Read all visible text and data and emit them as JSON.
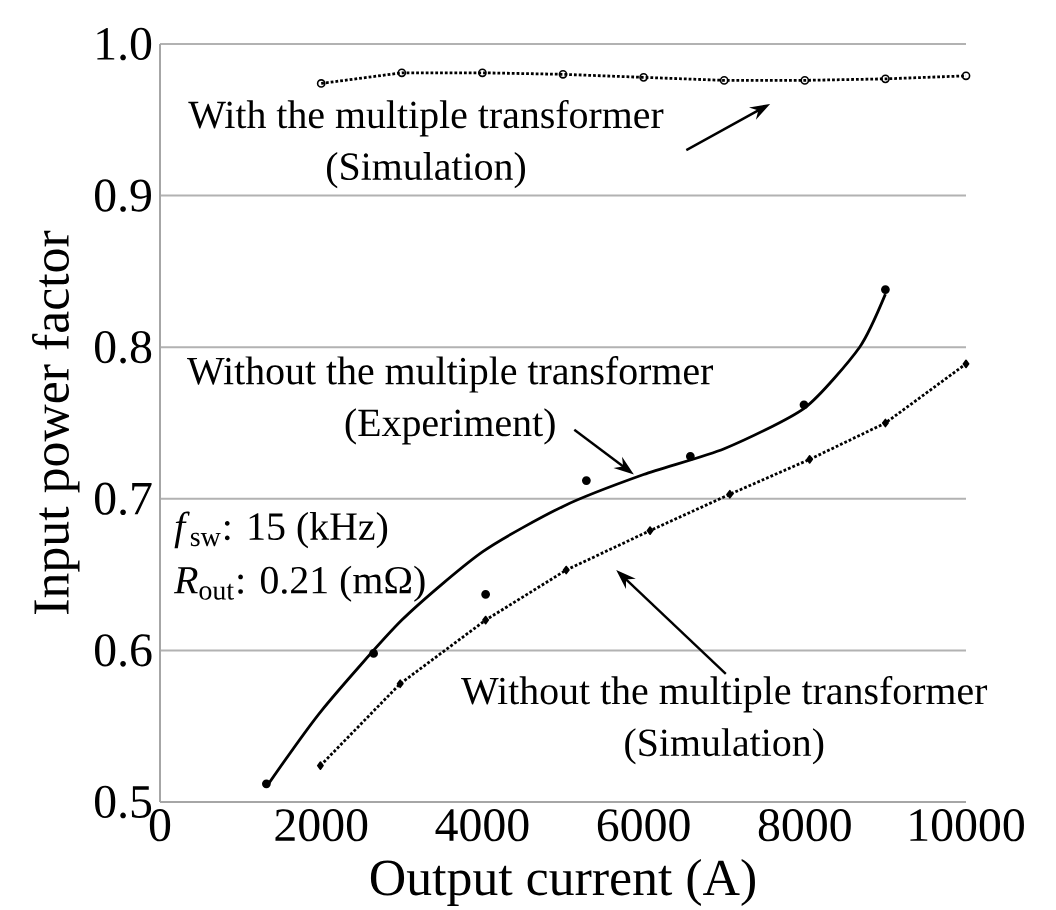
{
  "chart_data": {
    "type": "line",
    "xlabel": "Output current (A)",
    "ylabel": "Input power factor",
    "xlim": [
      0,
      10000
    ],
    "xticks": [
      0,
      2000,
      4000,
      6000,
      8000,
      10000
    ],
    "ylim": [
      0.5,
      1.0
    ],
    "yticks": [
      {
        "value": 0.5,
        "label": "0.5"
      },
      {
        "value": 0.6,
        "label": "0.6"
      },
      {
        "value": 0.7,
        "label": "0.7"
      },
      {
        "value": 0.8,
        "label": "0.8"
      },
      {
        "value": 0.9,
        "label": "0.9"
      },
      {
        "value": 1.0,
        "label": "1.0"
      }
    ],
    "grid": "y",
    "series": [
      {
        "line_style": "dotted",
        "marker": "circle",
        "color": "#000000",
        "x": [
          2000,
          3000,
          4000,
          5000,
          6000,
          7000,
          8000,
          9000,
          10000
        ],
        "values": [
          0.974,
          0.981,
          0.981,
          0.98,
          0.978,
          0.976,
          0.976,
          0.977,
          0.979
        ]
      },
      {
        "type": "scatter",
        "marker": "circle",
        "color": "#000000",
        "x": [
          1320,
          2650,
          4040,
          5290,
          6580,
          7990,
          9000
        ],
        "values": [
          0.512,
          0.598,
          0.637,
          0.712,
          0.728,
          0.762,
          0.838
        ]
      },
      {
        "line_style": "solid",
        "marker": "none",
        "color": "#000000",
        "x": [
          1320,
          2000,
          3000,
          4000,
          5000,
          6000,
          7000,
          8000,
          8680,
          9000
        ],
        "values": [
          0.51,
          0.56,
          0.62,
          0.665,
          0.695,
          0.716,
          0.733,
          0.76,
          0.8,
          0.835
        ]
      },
      {
        "line_style": "dotted",
        "marker": "diamond",
        "color": "#000000",
        "x": [
          1990,
          2980,
          4040,
          5040,
          6080,
          7070,
          8060,
          9000,
          10000
        ],
        "values": [
          0.524,
          0.578,
          0.62,
          0.653,
          0.679,
          0.703,
          0.726,
          0.75,
          0.789
        ]
      }
    ],
    "annotations": [
      "With the multiple transformer (Simulation)",
      {
        "text": "Without the multiple transformer (Experiment)",
        "x": 5880,
        "y": 0.716
      },
      "Without the multiple transformer (Simulation)",
      "*f*$_{sw}$: 15 (kHz)",
      "*R*$_{out}$: 0.21 (mΩ)"
    ]
  }
}
